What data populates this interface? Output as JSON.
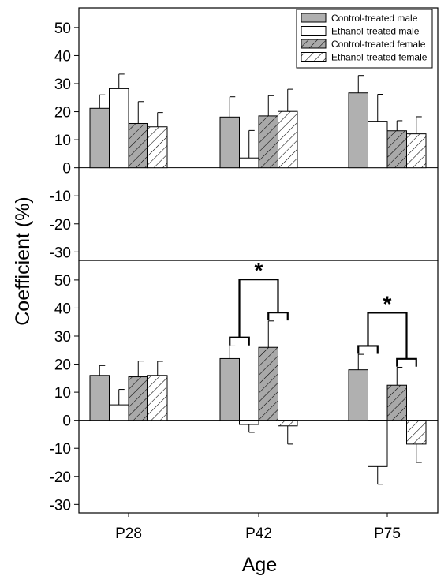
{
  "chart_data": {
    "type": "bar",
    "xlabel": "Age",
    "ylabel": "Coefficient (%)",
    "categories": [
      "P28",
      "P42",
      "P75"
    ],
    "ylim": [
      -33,
      57
    ],
    "yticks": [
      50,
      40,
      30,
      20,
      10,
      0,
      -10,
      -20,
      -30
    ],
    "legend_position": "top-right",
    "series_styles": [
      {
        "fill": "#b0b0b0",
        "hatch": false
      },
      {
        "fill": "#ffffff",
        "hatch": false
      },
      {
        "fill": "#a9a9a9",
        "hatch": true
      },
      {
        "fill": "#ffffff",
        "hatch": true
      }
    ],
    "panels": [
      {
        "series": [
          {
            "name": "Control-treated male",
            "values": [
              21.2,
              18.1,
              26.7
            ],
            "errors": [
              4.8,
              7.2,
              6.2
            ]
          },
          {
            "name": "Ethanol-treated male",
            "values": [
              28.2,
              3.5,
              16.6
            ],
            "errors": [
              5.2,
              9.8,
              9.6
            ]
          },
          {
            "name": "Control-treated female",
            "values": [
              15.8,
              18.5,
              13.2
            ],
            "errors": [
              7.8,
              7.2,
              3.6
            ]
          },
          {
            "name": "Ethanol-treated female",
            "values": [
              14.6,
              20.1,
              12.1
            ],
            "errors": [
              5.1,
              7.9,
              6.1
            ]
          }
        ],
        "significance": []
      },
      {
        "series": [
          {
            "values": [
              16.0,
              22.0,
              18.0
            ],
            "errors": [
              3.5,
              4.5,
              5.5
            ]
          },
          {
            "values": [
              5.5,
              -1.5,
              -16.5
            ],
            "errors": [
              5.5,
              2.8,
              6.3
            ]
          },
          {
            "values": [
              15.5,
              26.0,
              12.5
            ],
            "errors": [
              5.6,
              9.4,
              6.4
            ]
          },
          {
            "values": [
              16.0,
              -2.0,
              -8.5
            ],
            "errors": [
              5.0,
              6.5,
              6.5
            ]
          }
        ],
        "significance": [
          {
            "category": "P42",
            "label": "*"
          },
          {
            "category": "P75",
            "label": "*"
          }
        ]
      }
    ]
  }
}
